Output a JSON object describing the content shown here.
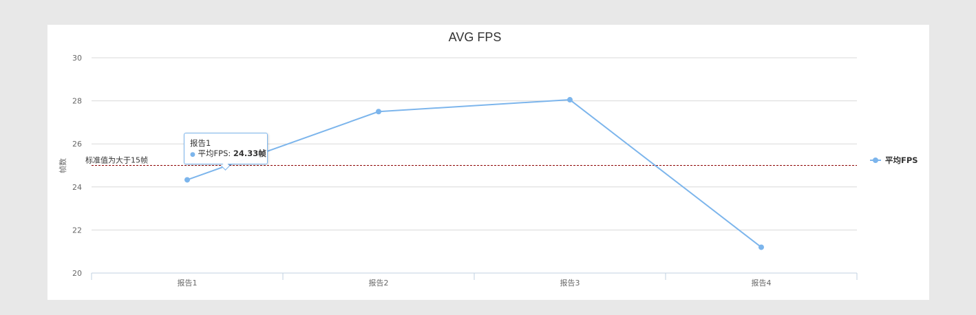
{
  "chart_data": {
    "type": "line",
    "title": "AVG FPS",
    "xlabel": "",
    "ylabel": "帧数",
    "categories": [
      "报告1",
      "报告2",
      "报告3",
      "报告4"
    ],
    "series": [
      {
        "name": "平均FPS",
        "color": "#7cb5ec",
        "values": [
          24.33,
          27.5,
          28.05,
          21.2
        ]
      }
    ],
    "ylim": [
      20,
      30
    ],
    "yticks": [
      20,
      22,
      24,
      26,
      28,
      30
    ],
    "grid": true,
    "legend": "right",
    "plot_line": {
      "value": 25,
      "label": "标准值为大于15帧",
      "color": "#8b0000"
    },
    "tooltip": {
      "title": "报告1",
      "series_label": "平均FPS: ",
      "value_text": "24.33帧"
    }
  }
}
